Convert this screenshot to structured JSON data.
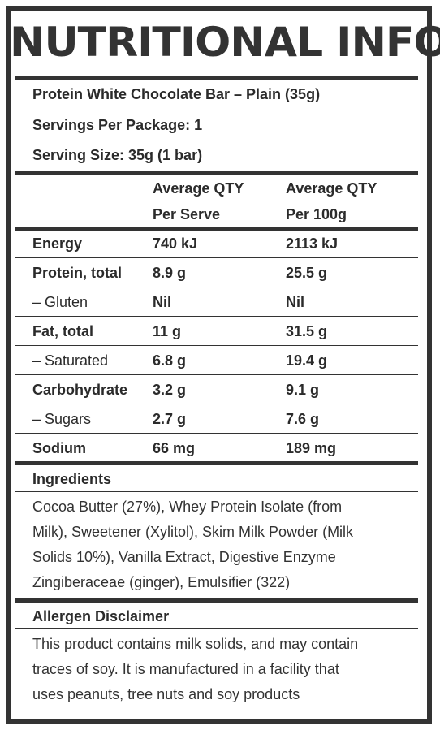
{
  "title": "NUTRITIONAL INFO",
  "product": "Protein White Chocolate Bar – Plain (35g)",
  "servings_per_package": "Servings Per Package: 1",
  "serving_size": "Serving Size: 35g (1 bar)",
  "table": {
    "col1_header": [
      "Average QTY",
      "Per Serve"
    ],
    "col2_header": [
      "Average QTY",
      "Per 100g"
    ],
    "rows": [
      {
        "label": "Energy",
        "bold": true,
        "per_serve": "740 kJ",
        "per_100g": "2113 kJ"
      },
      {
        "label": "Protein, total",
        "bold": true,
        "per_serve": "8.9 g",
        "per_100g": "25.5 g"
      },
      {
        "label": "– Gluten",
        "bold": false,
        "per_serve": "Nil",
        "per_100g": "Nil"
      },
      {
        "label": "Fat, total",
        "bold": true,
        "per_serve": "11 g",
        "per_100g": "31.5 g"
      },
      {
        "label": "– Saturated",
        "bold": false,
        "per_serve": "6.8 g",
        "per_100g": "19.4 g"
      },
      {
        "label": "Carbohydrate",
        "bold": true,
        "per_serve": "3.2 g",
        "per_100g": "9.1 g"
      },
      {
        "label": "– Sugars",
        "bold": false,
        "per_serve": "2.7 g",
        "per_100g": "7.6 g"
      },
      {
        "label": "Sodium",
        "bold": true,
        "per_serve": "66 mg",
        "per_100g": "189 mg"
      }
    ]
  },
  "ingredients": {
    "heading": "Ingredients",
    "lines": [
      "Cocoa Butter (27%), Whey Protein Isolate (from",
      "Milk), Sweetener (Xylitol), Skim Milk Powder (Milk",
      "Solids 10%), Vanilla Extract, Digestive Enzyme",
      "Zingiberaceae (ginger), Emulsifier (322)"
    ]
  },
  "allergen": {
    "heading": "Allergen Disclaimer",
    "lines": [
      "This product contains milk solids, and may contain",
      "traces of soy. It is manufactured in a facility that",
      "uses peanuts, tree nuts and soy products"
    ]
  }
}
